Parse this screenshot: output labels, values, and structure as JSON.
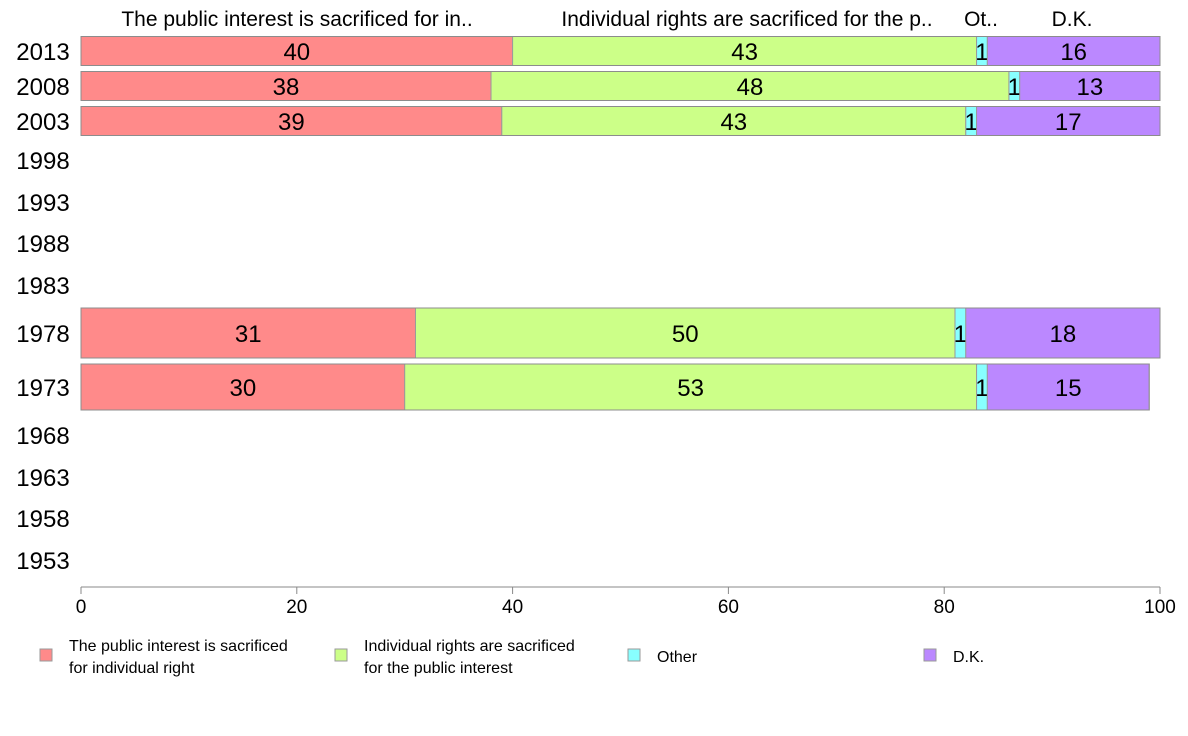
{
  "chart_data": {
    "type": "bar",
    "orientation": "horizontal",
    "stacked": true,
    "categories": [
      "2013",
      "2008",
      "2003",
      "1998",
      "1993",
      "1988",
      "1983",
      "1978",
      "1973",
      "1968",
      "1963",
      "1958",
      "1953"
    ],
    "series": [
      {
        "name": "The public interest is sacrificed for individual right",
        "header": "The public interest is sacrificed for in..",
        "legend_lines": [
          "The public interest is sacrificed",
          "for individual right"
        ],
        "color": "#ff8a8a",
        "values": [
          40,
          38,
          39,
          null,
          null,
          null,
          null,
          31,
          30,
          null,
          null,
          null,
          null
        ]
      },
      {
        "name": "Individual rights are sacrificed for the public interest",
        "header": "Individual rights are sacrificed for the p..",
        "legend_lines": [
          "Individual rights are sacrificed",
          "for the public interest"
        ],
        "color": "#ccff88",
        "values": [
          43,
          48,
          43,
          null,
          null,
          null,
          null,
          50,
          53,
          null,
          null,
          null,
          null
        ]
      },
      {
        "name": "Other",
        "header": "Ot..",
        "legend_lines": [
          "Other"
        ],
        "color": "#88ffff",
        "values": [
          1,
          1,
          1,
          null,
          null,
          null,
          null,
          1,
          1,
          null,
          null,
          null,
          null
        ]
      },
      {
        "name": "D.K.",
        "header": "D.K.",
        "legend_lines": [
          "D.K."
        ],
        "color": "#bb88ff",
        "values": [
          16,
          13,
          17,
          null,
          null,
          null,
          null,
          18,
          15,
          null,
          null,
          null,
          null
        ]
      }
    ],
    "xlim": [
      0,
      100
    ],
    "xticks": [
      0,
      20,
      40,
      60,
      80,
      100
    ],
    "grid": false,
    "legend_position": "bottom"
  }
}
